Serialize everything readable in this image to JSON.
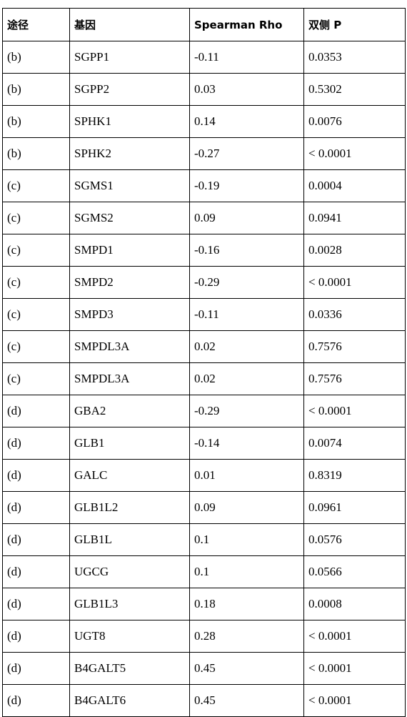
{
  "table": {
    "headers": [
      "途径",
      "基因",
      "Spearman Rho",
      "双侧 P"
    ],
    "rows": [
      [
        "(b)",
        "SGPP1",
        "-0.11",
        "0.0353"
      ],
      [
        "(b)",
        "SGPP2",
        "0.03",
        "0.5302"
      ],
      [
        "(b)",
        "SPHK1",
        "0.14",
        "0.0076"
      ],
      [
        "(b)",
        "SPHK2",
        "-0.27",
        "< 0.0001"
      ],
      [
        "(c)",
        "SGMS1",
        "-0.19",
        "0.0004"
      ],
      [
        "(c)",
        "SGMS2",
        "0.09",
        "0.0941"
      ],
      [
        "(c)",
        "SMPD1",
        "-0.16",
        "0.0028"
      ],
      [
        "(c)",
        "SMPD2",
        "-0.29",
        "< 0.0001"
      ],
      [
        "(c)",
        "SMPD3",
        "-0.11",
        "0.0336"
      ],
      [
        "(c)",
        "SMPDL3A",
        "0.02",
        "0.7576"
      ],
      [
        "(c)",
        "SMPDL3A",
        "0.02",
        "0.7576"
      ],
      [
        "(d)",
        "GBA2",
        "-0.29",
        "< 0.0001"
      ],
      [
        "(d)",
        "GLB1",
        "-0.14",
        "0.0074"
      ],
      [
        "(d)",
        "GALC",
        "0.01",
        "0.8319"
      ],
      [
        "(d)",
        "GLB1L2",
        "0.09",
        "0.0961"
      ],
      [
        "(d)",
        "GLB1L",
        "0.1",
        "0.0576"
      ],
      [
        "(d)",
        "UGCG",
        "0.1",
        "0.0566"
      ],
      [
        "(d)",
        "GLB1L3",
        "0.18",
        "0.0008"
      ],
      [
        "(d)",
        "UGT8",
        "0.28",
        "< 0.0001"
      ],
      [
        "(d)",
        "B4GALT5",
        "0.45",
        "< 0.0001"
      ],
      [
        "(d)",
        "B4GALT6",
        "0.45",
        "< 0.0001"
      ]
    ]
  }
}
